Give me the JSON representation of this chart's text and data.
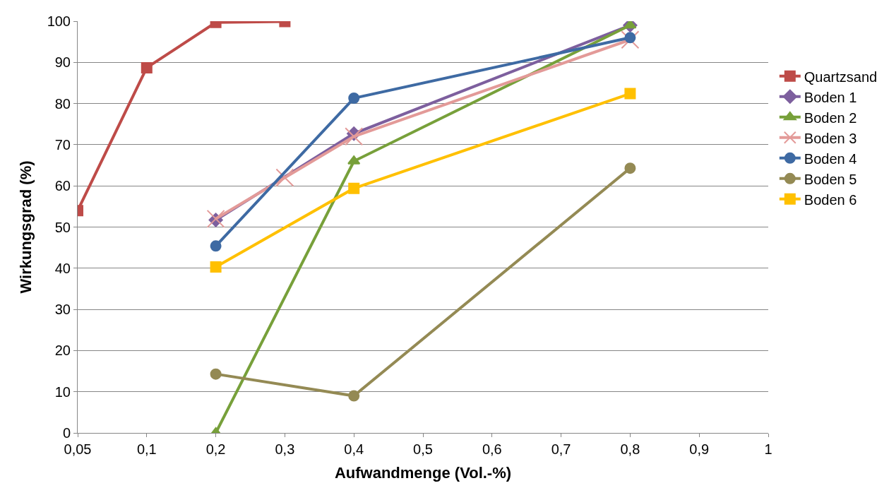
{
  "chart_data": {
    "type": "line",
    "xlabel": "Aufwandmenge (Vol.-%)",
    "ylabel": "Wirkungsgrad (%)",
    "categories": [
      "0,05",
      "0,1",
      "0,2",
      "0,3",
      "0,4",
      "0,5",
      "0,6",
      "0,7",
      "0,8",
      "0,9",
      "1"
    ],
    "ylim": [
      0,
      100
    ],
    "yticks": [
      0,
      10,
      20,
      30,
      40,
      50,
      60,
      70,
      80,
      90,
      100
    ],
    "grid": "y",
    "legend": "right",
    "series": [
      {
        "name": "Quartzsand",
        "color": "#be4b48",
        "marker": "square",
        "values": [
          54,
          88.7,
          99.7,
          99.9,
          null,
          null,
          null,
          null,
          null,
          null,
          null
        ]
      },
      {
        "name": "Boden 1",
        "color": "#7d5f9e",
        "marker": "diamond",
        "values": [
          null,
          null,
          51.7,
          null,
          72.7,
          null,
          null,
          null,
          99,
          null,
          null
        ]
      },
      {
        "name": "Boden 2",
        "color": "#77a03a",
        "marker": "triangle",
        "values": [
          null,
          null,
          0,
          null,
          66,
          null,
          null,
          null,
          99,
          null,
          null
        ]
      },
      {
        "name": "Boden 3",
        "color": "#e39a98",
        "marker": "cross",
        "values": [
          null,
          null,
          52,
          62,
          72,
          null,
          null,
          null,
          95.5,
          null,
          null
        ]
      },
      {
        "name": "Boden 4",
        "color": "#3e6aa3",
        "marker": "circle",
        "values": [
          null,
          null,
          45.4,
          null,
          81.3,
          null,
          null,
          null,
          96,
          null,
          null
        ]
      },
      {
        "name": "Boden 5",
        "color": "#948a54",
        "marker": "circle",
        "values": [
          null,
          null,
          14.3,
          null,
          9,
          null,
          null,
          null,
          64.3,
          null,
          null
        ]
      },
      {
        "name": "Boden 6",
        "color": "#ffc000",
        "marker": "square",
        "values": [
          null,
          null,
          40.3,
          null,
          59.4,
          null,
          null,
          null,
          82.4,
          null,
          null
        ]
      }
    ]
  }
}
